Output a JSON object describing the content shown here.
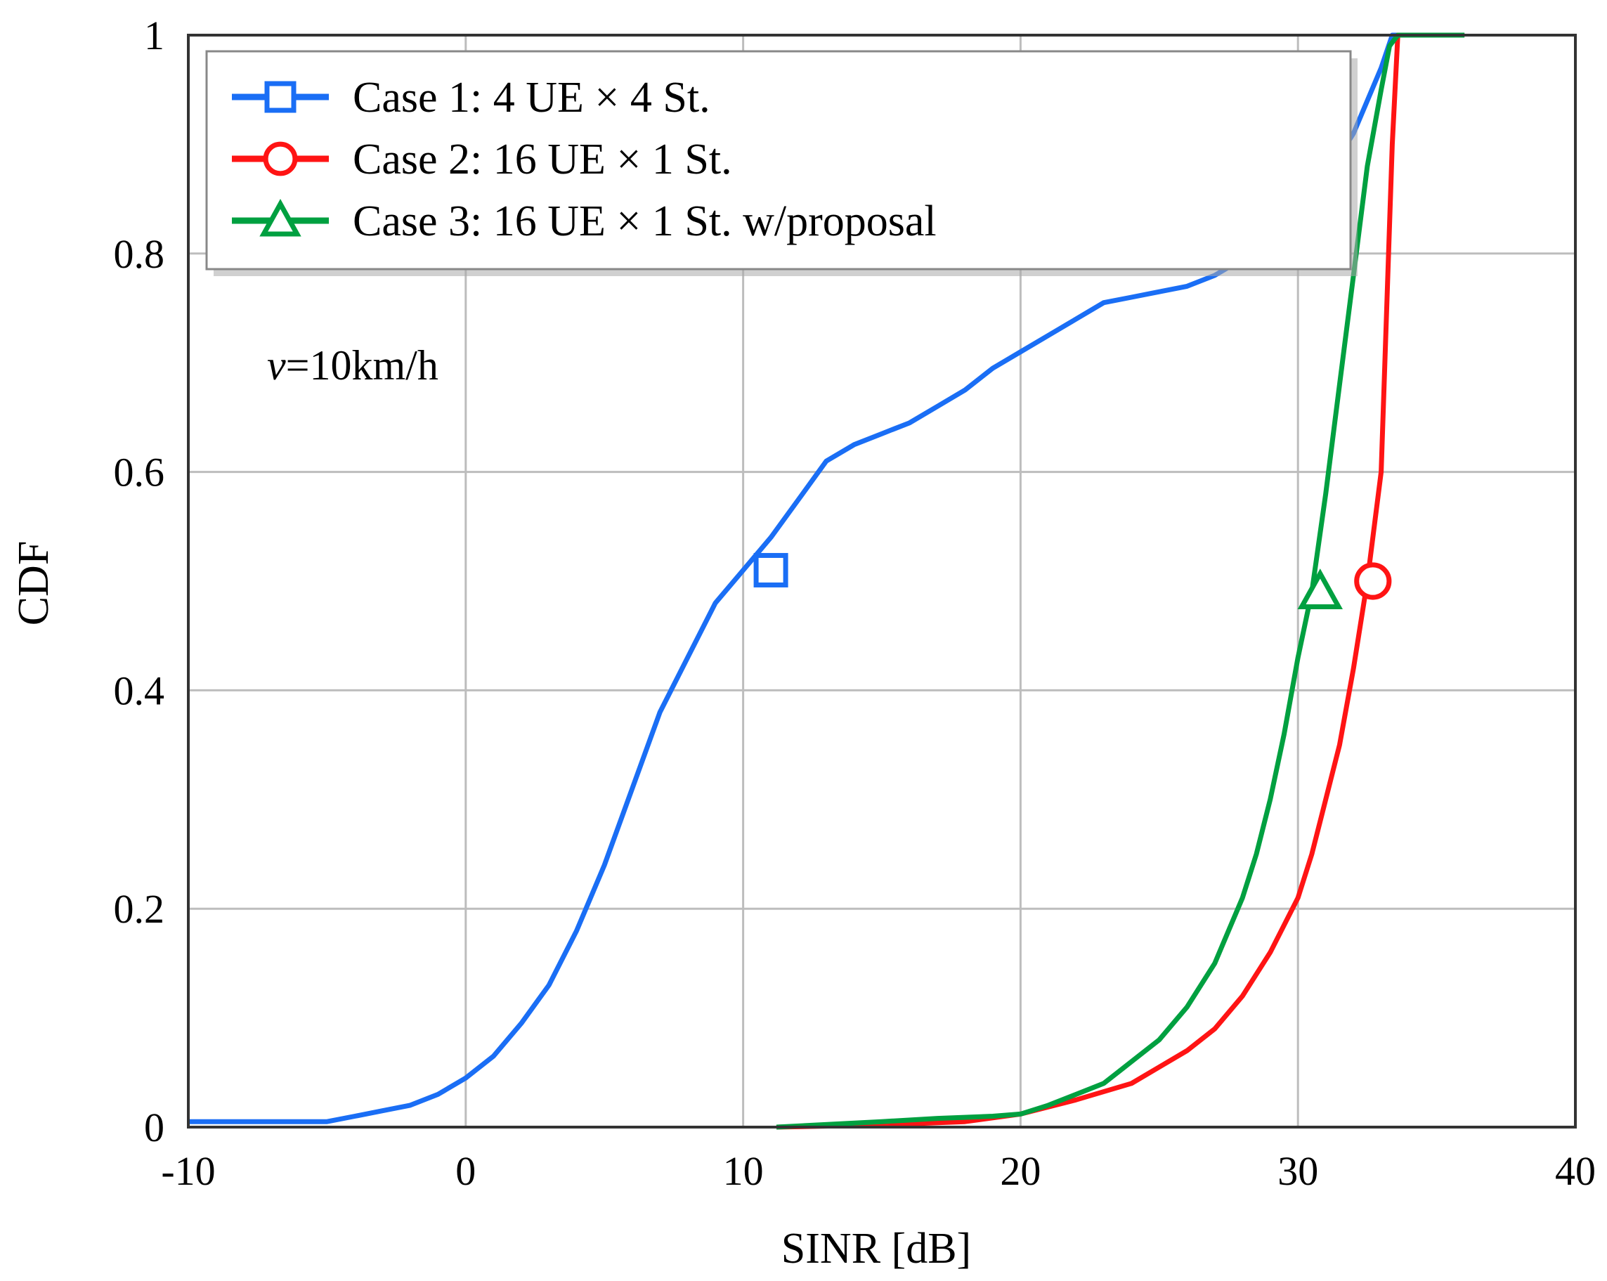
{
  "chart_data": {
    "type": "line",
    "title": "",
    "xlabel": "SINR [dB]",
    "ylabel": "CDF",
    "xlim": [
      -10,
      40
    ],
    "ylim": [
      0,
      1
    ],
    "xticks": [
      -10,
      0,
      10,
      20,
      30,
      40
    ],
    "yticks": [
      0,
      0.2,
      0.4,
      0.6,
      0.8,
      1
    ],
    "xtick_labels": [
      "-10",
      "0",
      "10",
      "20",
      "30",
      "40"
    ],
    "ytick_labels": [
      "0",
      "0.2",
      "0.4",
      "0.6",
      "0.8",
      "1"
    ],
    "grid": true,
    "legend_position": "top-left",
    "annotation": {
      "var": "v",
      "rest": "=10km/h"
    },
    "series": [
      {
        "name": "Case 1: 4 UE × 4 St.",
        "color": "#1a6ef5",
        "marker": "square",
        "marker_point": [
          11,
          0.51
        ],
        "x": [
          -10,
          -5,
          -4,
          -3,
          -2,
          -1,
          0,
          1,
          2,
          3,
          4,
          5,
          6,
          7,
          8,
          9,
          10,
          11,
          12,
          13,
          14,
          15,
          16,
          17,
          18,
          19,
          20,
          21,
          22,
          23,
          24,
          25,
          26,
          27,
          28,
          29,
          30,
          31,
          32,
          33,
          33.4,
          33.7,
          34,
          36
        ],
        "y": [
          0.005,
          0.005,
          0.01,
          0.015,
          0.02,
          0.03,
          0.045,
          0.065,
          0.095,
          0.13,
          0.18,
          0.24,
          0.31,
          0.38,
          0.43,
          0.48,
          0.51,
          0.54,
          0.575,
          0.61,
          0.625,
          0.635,
          0.645,
          0.66,
          0.675,
          0.695,
          0.71,
          0.725,
          0.74,
          0.755,
          0.76,
          0.765,
          0.77,
          0.78,
          0.795,
          0.81,
          0.835,
          0.87,
          0.91,
          0.97,
          1.0,
          1.0,
          1.0,
          1.0
        ]
      },
      {
        "name": "Case 2: 16 UE × 1 St.",
        "color": "#ff1414",
        "marker": "circle",
        "marker_point": [
          32.7,
          0.5
        ],
        "x": [
          11.2,
          15,
          18,
          20,
          22,
          24,
          25,
          26,
          27,
          28,
          29,
          30,
          30.5,
          31,
          31.5,
          32,
          32.5,
          33,
          33.2,
          33.4,
          33.6,
          34,
          36
        ],
        "y": [
          0.0,
          0.002,
          0.005,
          0.012,
          0.025,
          0.04,
          0.055,
          0.07,
          0.09,
          0.12,
          0.16,
          0.21,
          0.25,
          0.3,
          0.35,
          0.42,
          0.5,
          0.6,
          0.75,
          0.9,
          1.0,
          1.0,
          1.0
        ]
      },
      {
        "name": "Case 3: 16 UE × 1 St. w/proposal",
        "color": "#00a040",
        "marker": "triangle",
        "marker_point": [
          30.8,
          0.49
        ],
        "x": [
          11.2,
          15,
          17,
          19,
          20,
          21,
          22,
          23,
          24,
          25,
          26,
          27,
          27.5,
          28,
          28.5,
          29,
          29.5,
          30,
          30.5,
          31,
          31.5,
          32,
          32.5,
          33,
          33.3,
          33.6,
          34,
          36
        ],
        "y": [
          0.0,
          0.005,
          0.008,
          0.01,
          0.012,
          0.02,
          0.03,
          0.04,
          0.06,
          0.08,
          0.11,
          0.15,
          0.18,
          0.21,
          0.25,
          0.3,
          0.36,
          0.43,
          0.49,
          0.58,
          0.68,
          0.78,
          0.88,
          0.95,
          0.99,
          1.0,
          1.0,
          1.0
        ]
      }
    ]
  }
}
